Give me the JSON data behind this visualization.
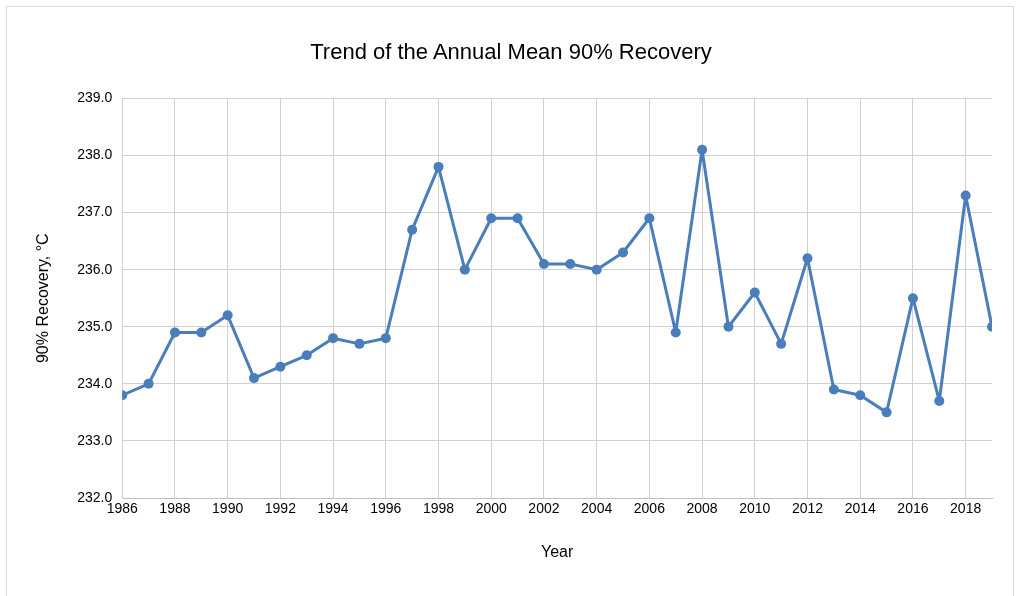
{
  "chart_data": {
    "type": "line",
    "title": "Trend of the Annual Mean 90% Recovery",
    "xlabel": "Year",
    "ylabel": "90% Recovery, °C",
    "x": [
      1986,
      1987,
      1988,
      1989,
      1990,
      1991,
      1992,
      1993,
      1994,
      1995,
      1996,
      1997,
      1998,
      1999,
      2000,
      2001,
      2002,
      2003,
      2004,
      2005,
      2006,
      2007,
      2008,
      2009,
      2010,
      2011,
      2012,
      2013,
      2014,
      2015,
      2016,
      2017,
      2018,
      2019
    ],
    "series": [
      {
        "color": "#4a7ebb",
        "values": [
          233.8,
          234.0,
          234.9,
          234.9,
          235.2,
          234.1,
          234.3,
          234.5,
          234.8,
          234.7,
          234.8,
          236.7,
          237.8,
          236.0,
          236.9,
          236.9,
          236.1,
          236.1,
          236.0,
          236.3,
          236.9,
          234.9,
          238.1,
          235.0,
          235.6,
          234.7,
          236.2,
          233.9,
          233.8,
          233.5,
          235.5,
          233.7,
          237.3,
          235.0
        ]
      }
    ],
    "xlim": [
      1986,
      2019
    ],
    "xticks": [
      1986,
      1988,
      1990,
      1992,
      1994,
      1996,
      1998,
      2000,
      2002,
      2004,
      2006,
      2008,
      2010,
      2012,
      2014,
      2016,
      2018
    ],
    "ylim": [
      232,
      239
    ],
    "yticks": [
      {
        "value": 232,
        "label": "232.0"
      },
      {
        "value": 233,
        "label": "233.0"
      },
      {
        "value": 234,
        "label": "234.0"
      },
      {
        "value": 235,
        "label": "235.0"
      },
      {
        "value": 236,
        "label": "236.0"
      },
      {
        "value": 237,
        "label": "237.0"
      },
      {
        "value": 238,
        "label": "238.0"
      },
      {
        "value": 239,
        "label": "239.0"
      }
    ],
    "grid": true,
    "legend": false,
    "marker": "circle",
    "line_style": "solid"
  }
}
